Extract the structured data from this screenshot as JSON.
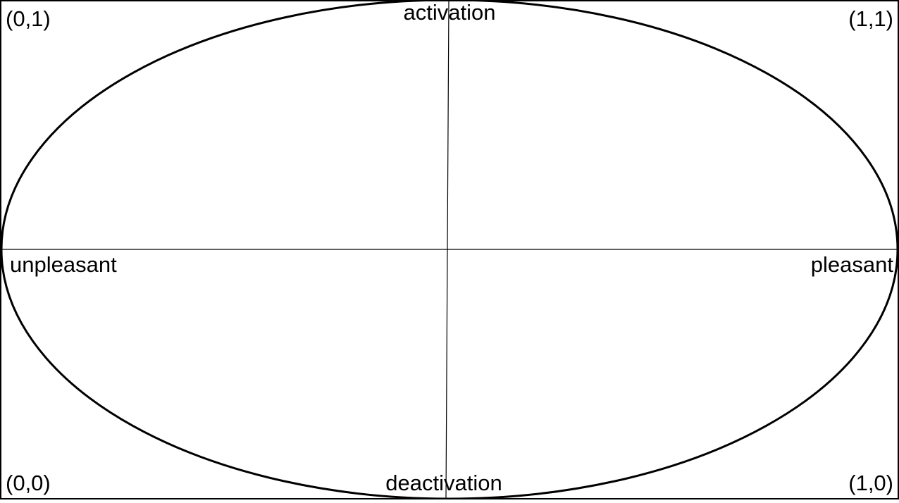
{
  "diagram": {
    "type": "affect-circumplex",
    "colors": {
      "stroke": "#000000",
      "background": "#ffffff"
    },
    "axes": {
      "top": "activation",
      "bottom": "deactivation",
      "left": "unpleasant",
      "right": "pleasant"
    },
    "corners": {
      "top_left": "(0,1)",
      "top_right": "(1,1)",
      "bottom_left": "(0,0)",
      "bottom_right": "(1,0)"
    }
  }
}
